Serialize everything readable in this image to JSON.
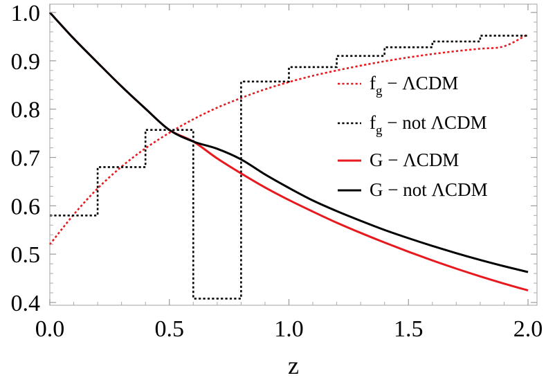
{
  "chart_data": {
    "type": "line",
    "title": "",
    "xlabel": "z",
    "ylabel": "",
    "xlim": [
      0.0,
      2.0
    ],
    "ylim": [
      0.4,
      1.0
    ],
    "x_ticks": [
      "0.0",
      "0.5",
      "1.0",
      "1.5",
      "2.0"
    ],
    "y_ticks": [
      "0.4",
      "0.5",
      "0.6",
      "0.7",
      "0.8",
      "0.9",
      "1.0"
    ],
    "grid": false,
    "legend_position": "right",
    "series": [
      {
        "name": "f_g − ΛCDM",
        "legend_main": "f",
        "legend_sub": "g",
        "legend_rest": " − ΛCDM",
        "color": "#e8191e",
        "style": "dotted",
        "x": [
          0.0,
          0.1,
          0.2,
          0.3,
          0.4,
          0.5,
          0.6,
          0.7,
          0.8,
          0.9,
          1.0,
          1.1,
          1.2,
          1.3,
          1.4,
          1.5,
          1.6,
          1.7,
          1.8,
          1.9,
          2.0
        ],
        "y": [
          0.52,
          0.582,
          0.636,
          0.681,
          0.719,
          0.751,
          0.779,
          0.803,
          0.823,
          0.841,
          0.856,
          0.869,
          0.88,
          0.89,
          0.899,
          0.907,
          0.914,
          0.92,
          0.925,
          0.93,
          0.955
        ]
      },
      {
        "name": "f_g − not ΛCDM",
        "legend_main": "f",
        "legend_sub": "g",
        "legend_rest": " − not ΛCDM",
        "color": "#000000",
        "style": "dotted",
        "step": true,
        "x": [
          0.0,
          0.2,
          0.2,
          0.4,
          0.4,
          0.6,
          0.6,
          0.8,
          0.8,
          1.0,
          1.0,
          1.2,
          1.2,
          1.4,
          1.4,
          1.6,
          1.6,
          1.8,
          1.8,
          2.0
        ],
        "y": [
          0.58,
          0.58,
          0.68,
          0.68,
          0.757,
          0.757,
          0.408,
          0.408,
          0.857,
          0.857,
          0.887,
          0.887,
          0.91,
          0.91,
          0.928,
          0.928,
          0.94,
          0.94,
          0.952,
          0.952
        ]
      },
      {
        "name": "G − ΛCDM",
        "legend_main": "G",
        "legend_sub": "",
        "legend_rest": " − ΛCDM",
        "color": "#e8191e",
        "style": "solid",
        "x": [
          0.0,
          0.1,
          0.2,
          0.3,
          0.4,
          0.5,
          0.6,
          0.7,
          0.8,
          0.9,
          1.0,
          1.1,
          1.2,
          1.3,
          1.4,
          1.5,
          1.6,
          1.7,
          1.8,
          1.9,
          2.0
        ],
        "y": [
          1.0,
          0.946,
          0.896,
          0.847,
          0.801,
          0.757,
          0.733,
          0.698,
          0.667,
          0.638,
          0.612,
          0.588,
          0.565,
          0.544,
          0.524,
          0.505,
          0.487,
          0.47,
          0.454,
          0.439,
          0.425
        ]
      },
      {
        "name": "G − not ΛCDM",
        "legend_main": "G",
        "legend_sub": "",
        "legend_rest": " − not ΛCDM",
        "color": "#000000",
        "style": "solid",
        "x": [
          0.0,
          0.1,
          0.2,
          0.3,
          0.4,
          0.5,
          0.6,
          0.7,
          0.8,
          0.9,
          1.0,
          1.1,
          1.2,
          1.3,
          1.4,
          1.5,
          1.6,
          1.7,
          1.8,
          1.9,
          2.0
        ],
        "y": [
          1.0,
          0.946,
          0.896,
          0.847,
          0.801,
          0.757,
          0.733,
          0.718,
          0.696,
          0.665,
          0.637,
          0.611,
          0.589,
          0.569,
          0.55,
          0.533,
          0.517,
          0.502,
          0.488,
          0.475,
          0.463
        ]
      }
    ]
  }
}
